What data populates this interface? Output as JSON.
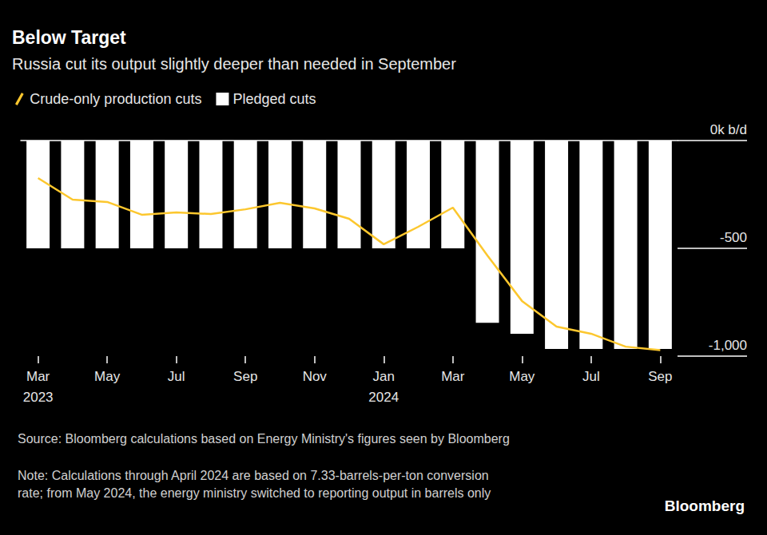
{
  "chart_data": {
    "type": "bar",
    "title": "Below Target",
    "subtitle": "Russia cut its output slightly deeper than needed in September",
    "categories": [
      "Mar\n2023",
      null,
      "May",
      null,
      "Jul",
      null,
      "Sep",
      null,
      "Nov",
      null,
      "Jan\n2024",
      null,
      "Mar",
      null,
      "May",
      null,
      "Jul",
      null,
      "Sep"
    ],
    "series": [
      {
        "name": "Crude-only production cuts",
        "type": "line",
        "color": "#fcc72e",
        "values": [
          -174,
          -274,
          -285,
          -344,
          -333,
          -341,
          -319,
          -289,
          -315,
          -363,
          -481,
          -400,
          -311,
          -533,
          -744,
          -863,
          -896,
          -956,
          -972
        ]
      },
      {
        "name": "Pledged cuts",
        "type": "bar",
        "color": "#ffffff",
        "values": [
          -500,
          -500,
          -500,
          -500,
          -500,
          -500,
          -500,
          -500,
          -500,
          -500,
          -500,
          -500,
          -500,
          -845,
          -896,
          -967,
          -967,
          -967,
          -967
        ]
      }
    ],
    "ylim": [
      -1000,
      0
    ],
    "yticks": [
      {
        "value": 0,
        "label": "0k b/d"
      },
      {
        "value": -500,
        "label": "-500"
      },
      {
        "value": -1000,
        "label": "-1,000"
      }
    ],
    "grid": false,
    "legend": "top-left",
    "source": "Source: Bloomberg calculations based on Energy Ministry's figures seen by Bloomberg",
    "note": "Note: Calculations through April 2024 are based on 7.33-barrels-per-ton conversion rate; from May 2024, the energy ministry switched to reporting output in barrels only",
    "credit": "Bloomberg"
  }
}
